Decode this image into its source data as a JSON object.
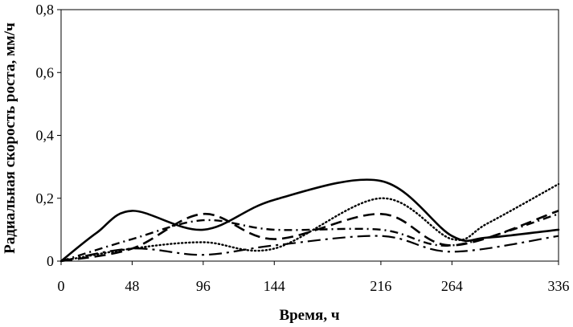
{
  "chart_data": {
    "type": "line",
    "title": "",
    "xlabel": "Время, ч",
    "ylabel": "Радиальная скорость роста, мм/ч",
    "xlim": [
      0,
      336
    ],
    "ylim": [
      0,
      0.8
    ],
    "x_ticks": [
      0,
      48,
      96,
      144,
      216,
      264,
      336
    ],
    "x_tick_labels": [
      "0",
      "48",
      "96",
      "144",
      "216",
      "264",
      "336"
    ],
    "y_ticks": [
      0,
      0.2,
      0.4,
      0.6,
      0.8
    ],
    "y_tick_labels": [
      "0",
      "0,2",
      "0,4",
      "0,6",
      "0,8"
    ],
    "grid": false,
    "legend": "none",
    "line_color": "#000000",
    "series": [
      {
        "style": "solid",
        "points": [
          [
            0,
            0
          ],
          [
            24,
            0.09
          ],
          [
            48,
            0.16
          ],
          [
            96,
            0.1
          ],
          [
            144,
            0.195
          ],
          [
            216,
            0.255
          ],
          [
            264,
            0.08
          ],
          [
            288,
            0.075
          ],
          [
            336,
            0.1
          ]
        ]
      },
      {
        "style": "dotted",
        "points": [
          [
            0,
            0
          ],
          [
            48,
            0.04
          ],
          [
            96,
            0.06
          ],
          [
            144,
            0.04
          ],
          [
            216,
            0.2
          ],
          [
            264,
            0.07
          ],
          [
            288,
            0.12
          ],
          [
            336,
            0.245
          ]
        ]
      },
      {
        "style": "long-dash",
        "points": [
          [
            0,
            0
          ],
          [
            48,
            0.04
          ],
          [
            96,
            0.15
          ],
          [
            144,
            0.07
          ],
          [
            216,
            0.15
          ],
          [
            264,
            0.05
          ],
          [
            336,
            0.16
          ]
        ]
      },
      {
        "style": "dash-dot",
        "points": [
          [
            0,
            0
          ],
          [
            48,
            0.07
          ],
          [
            96,
            0.13
          ],
          [
            144,
            0.1
          ],
          [
            216,
            0.1
          ],
          [
            264,
            0.05
          ],
          [
            336,
            0.15
          ]
        ]
      },
      {
        "style": "dash-dot-2",
        "points": [
          [
            0,
            0
          ],
          [
            48,
            0.04
          ],
          [
            96,
            0.02
          ],
          [
            144,
            0.05
          ],
          [
            216,
            0.08
          ],
          [
            264,
            0.03
          ],
          [
            336,
            0.08
          ]
        ]
      }
    ]
  }
}
